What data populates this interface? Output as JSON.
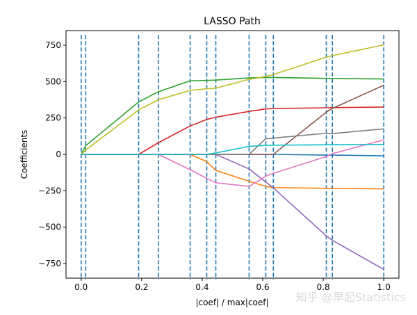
{
  "chart_data": {
    "type": "line",
    "title": "LASSO Path",
    "xlabel": "|coef| / max|coef|",
    "ylabel": "Coefficients",
    "xlim": [
      -0.05,
      1.05
    ],
    "ylim": [
      -850,
      850
    ],
    "xticks": [
      0.0,
      0.2,
      0.4,
      0.6,
      0.8,
      1.0
    ],
    "xtick_labels": [
      "0.0",
      "0.2",
      "0.4",
      "0.6",
      "0.8",
      "1.0"
    ],
    "yticks": [
      -750,
      -500,
      -250,
      0,
      250,
      500,
      750
    ],
    "ytick_labels": [
      "−750",
      "−500",
      "−250",
      "0",
      "250",
      "500",
      "750"
    ],
    "grid": false,
    "knots": [
      0.0,
      0.015,
      0.19,
      0.255,
      0.36,
      0.415,
      0.445,
      0.555,
      0.61,
      0.635,
      0.81,
      0.83,
      1.0
    ],
    "knot_line": {
      "color": "#1f77b4",
      "style": "dashed",
      "ymin": -860,
      "ymax": 820
    },
    "series": [
      {
        "color": "#1f77b4",
        "points": [
          [
            0,
            0
          ],
          [
            0.015,
            0
          ],
          [
            0.19,
            0
          ],
          [
            0.255,
            0
          ],
          [
            0.36,
            0
          ],
          [
            0.415,
            0
          ],
          [
            0.445,
            0
          ],
          [
            0.555,
            0
          ],
          [
            0.61,
            0
          ],
          [
            0.635,
            0
          ],
          [
            0.81,
            -5
          ],
          [
            0.83,
            -5
          ],
          [
            1.0,
            -10
          ]
        ]
      },
      {
        "color": "#ff7f0e",
        "points": [
          [
            0,
            0
          ],
          [
            0.015,
            0
          ],
          [
            0.19,
            0
          ],
          [
            0.255,
            0
          ],
          [
            0.36,
            0
          ],
          [
            0.415,
            -50
          ],
          [
            0.445,
            -110
          ],
          [
            0.555,
            -185
          ],
          [
            0.61,
            -220
          ],
          [
            0.635,
            -228
          ],
          [
            0.81,
            -233
          ],
          [
            0.83,
            -234
          ],
          [
            1.0,
            -237
          ]
        ]
      },
      {
        "color": "#2ca02c",
        "points": [
          [
            0,
            0
          ],
          [
            0.015,
            60
          ],
          [
            0.19,
            360
          ],
          [
            0.255,
            430
          ],
          [
            0.36,
            505
          ],
          [
            0.415,
            508
          ],
          [
            0.445,
            510
          ],
          [
            0.555,
            525
          ],
          [
            0.61,
            528
          ],
          [
            0.635,
            528
          ],
          [
            0.81,
            522
          ],
          [
            0.83,
            521
          ],
          [
            1.0,
            518
          ]
        ]
      },
      {
        "color": "#d62728",
        "points": [
          [
            0,
            0
          ],
          [
            0.015,
            0
          ],
          [
            0.19,
            0
          ],
          [
            0.255,
            80
          ],
          [
            0.36,
            195
          ],
          [
            0.415,
            240
          ],
          [
            0.445,
            255
          ],
          [
            0.555,
            295
          ],
          [
            0.61,
            312
          ],
          [
            0.635,
            315
          ],
          [
            0.81,
            320
          ],
          [
            0.83,
            321
          ],
          [
            1.0,
            325
          ]
        ]
      },
      {
        "color": "#9467bd",
        "points": [
          [
            0,
            0
          ],
          [
            0.015,
            0
          ],
          [
            0.19,
            0
          ],
          [
            0.255,
            0
          ],
          [
            0.36,
            0
          ],
          [
            0.415,
            0
          ],
          [
            0.445,
            0
          ],
          [
            0.555,
            -100
          ],
          [
            0.61,
            -190
          ],
          [
            0.635,
            -230
          ],
          [
            0.81,
            -560
          ],
          [
            0.83,
            -590
          ],
          [
            1.0,
            -790
          ]
        ]
      },
      {
        "color": "#8c564b",
        "points": [
          [
            0,
            0
          ],
          [
            0.015,
            0
          ],
          [
            0.19,
            0
          ],
          [
            0.255,
            0
          ],
          [
            0.36,
            0
          ],
          [
            0.415,
            0
          ],
          [
            0.445,
            0
          ],
          [
            0.555,
            0
          ],
          [
            0.61,
            0
          ],
          [
            0.635,
            0
          ],
          [
            0.81,
            290
          ],
          [
            0.83,
            315
          ],
          [
            1.0,
            475
          ]
        ]
      },
      {
        "color": "#e377c2",
        "points": [
          [
            0,
            0
          ],
          [
            0.015,
            0
          ],
          [
            0.19,
            0
          ],
          [
            0.255,
            0
          ],
          [
            0.36,
            -105
          ],
          [
            0.415,
            -165
          ],
          [
            0.445,
            -195
          ],
          [
            0.555,
            -220
          ],
          [
            0.61,
            -150
          ],
          [
            0.635,
            -130
          ],
          [
            0.81,
            -15
          ],
          [
            0.83,
            5
          ],
          [
            1.0,
            100
          ]
        ]
      },
      {
        "color": "#7f7f7f",
        "points": [
          [
            0,
            0
          ],
          [
            0.015,
            0
          ],
          [
            0.19,
            0
          ],
          [
            0.255,
            0
          ],
          [
            0.36,
            0
          ],
          [
            0.415,
            0
          ],
          [
            0.445,
            0
          ],
          [
            0.555,
            0
          ],
          [
            0.61,
            108
          ],
          [
            0.635,
            112
          ],
          [
            0.81,
            145
          ],
          [
            0.83,
            143
          ],
          [
            1.0,
            175
          ]
        ]
      },
      {
        "color": "#bcbd22",
        "points": [
          [
            0,
            0
          ],
          [
            0.015,
            30
          ],
          [
            0.19,
            305
          ],
          [
            0.255,
            375
          ],
          [
            0.36,
            440
          ],
          [
            0.415,
            450
          ],
          [
            0.445,
            455
          ],
          [
            0.555,
            515
          ],
          [
            0.61,
            535
          ],
          [
            0.635,
            548
          ],
          [
            0.81,
            668
          ],
          [
            0.83,
            678
          ],
          [
            1.0,
            752
          ]
        ]
      },
      {
        "color": "#17becf",
        "points": [
          [
            0,
            0
          ],
          [
            0.015,
            0
          ],
          [
            0.19,
            0
          ],
          [
            0.255,
            0
          ],
          [
            0.36,
            0
          ],
          [
            0.415,
            0
          ],
          [
            0.445,
            10
          ],
          [
            0.555,
            55
          ],
          [
            0.61,
            62
          ],
          [
            0.635,
            63
          ],
          [
            0.81,
            66
          ],
          [
            0.83,
            67
          ],
          [
            1.0,
            68
          ]
        ]
      }
    ]
  },
  "watermark": {
    "text": "知乎 @早起Statistics"
  }
}
